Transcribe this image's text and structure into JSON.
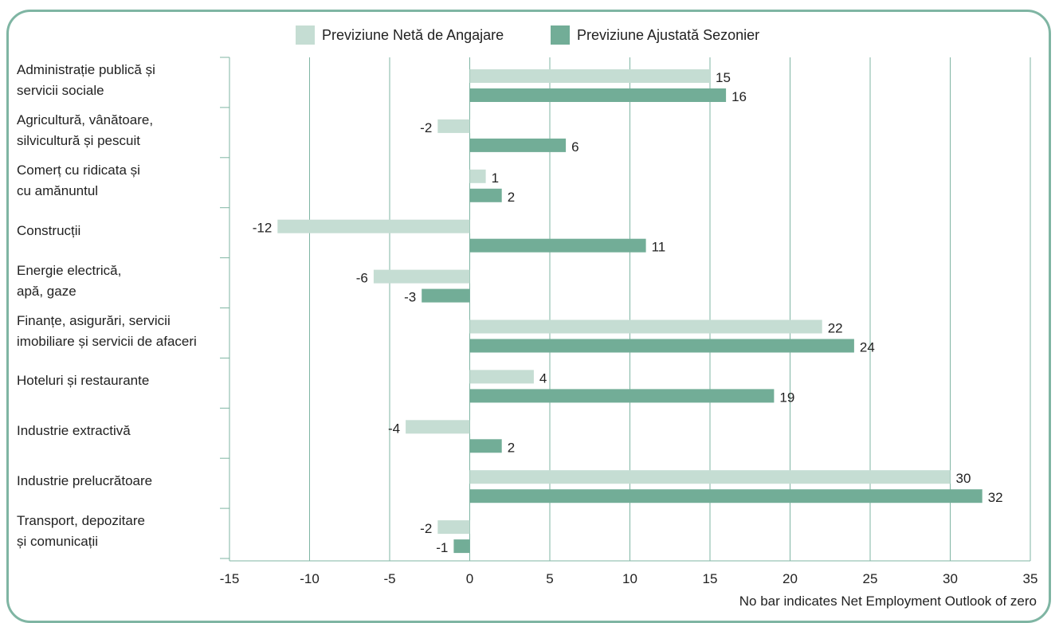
{
  "colors": {
    "frame": "#7fb5a3",
    "series_net": "#c5ddd3",
    "series_adjusted": "#72ad97",
    "gridline": "#7fb5a3"
  },
  "footnote": "No bar indicates Net Employment Outlook of zero",
  "chart_data": {
    "type": "bar",
    "orientation": "horizontal",
    "categories": [
      "Administrație publică și\nservicii sociale",
      "Agricultură, vânătoare,\nsilvicultură și pescuit",
      "Comerț cu ridicata și\ncu amănuntul",
      "Construcții",
      "Energie electrică,\napă, gaze",
      "Finanțe, asigurări, servicii\nimobiliare și servicii de afaceri",
      "Hoteluri și restaurante",
      "Industrie extractivă",
      "Industrie prelucrătoare",
      "Transport, depozitare\nși comunicații"
    ],
    "series": [
      {
        "name": "Previziune Netă de Angajare",
        "color": "#c5ddd3",
        "values": [
          15,
          -2,
          1,
          -12,
          -6,
          22,
          4,
          -4,
          30,
          -2
        ]
      },
      {
        "name": "Previziune Ajustată Sezonier",
        "color": "#72ad97",
        "values": [
          16,
          6,
          2,
          11,
          -3,
          24,
          19,
          2,
          32,
          -1
        ]
      }
    ],
    "xlim": [
      -15,
      35
    ],
    "xticks": [
      -15,
      -10,
      -5,
      0,
      5,
      10,
      15,
      20,
      25,
      30,
      35
    ],
    "grid": true,
    "legend": "top-center"
  }
}
